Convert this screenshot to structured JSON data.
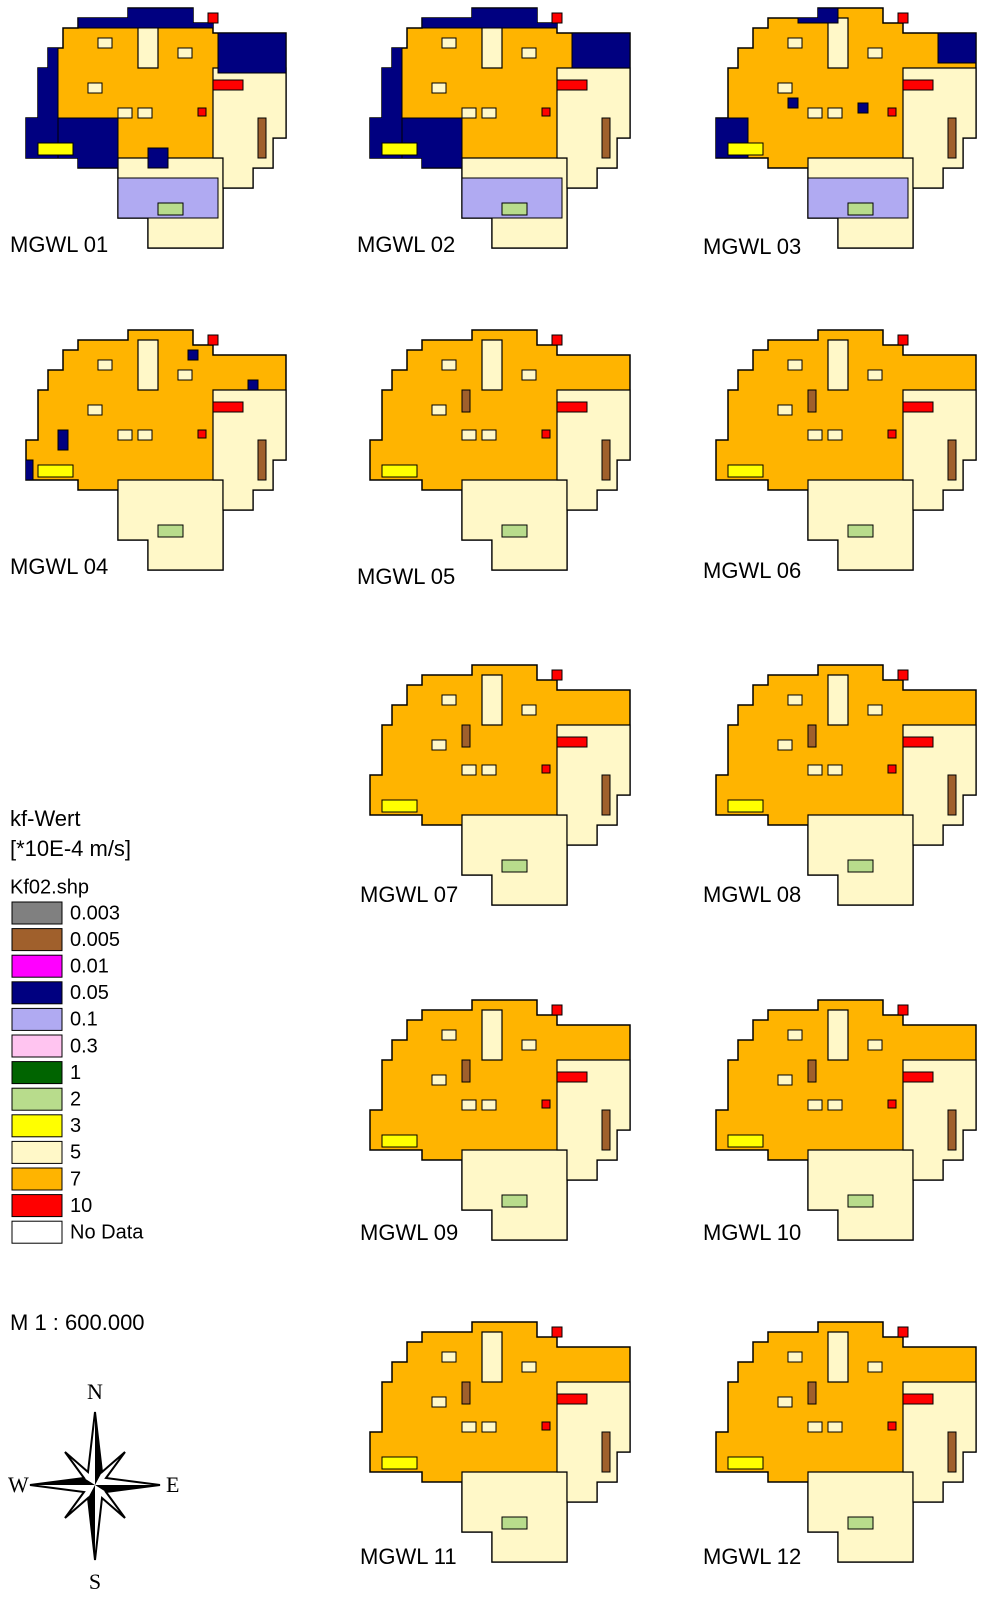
{
  "maps": [
    {
      "label": "MGWL 01"
    },
    {
      "label": "MGWL 02"
    },
    {
      "label": "MGWL 03"
    },
    {
      "label": "MGWL 04"
    },
    {
      "label": "MGWL 05"
    },
    {
      "label": "MGWL 06"
    },
    {
      "label": "MGWL 07"
    },
    {
      "label": "MGWL 08"
    },
    {
      "label": "MGWL 09"
    },
    {
      "label": "MGWL 10"
    },
    {
      "label": "MGWL 11"
    },
    {
      "label": "MGWL 12"
    }
  ],
  "legend": {
    "title": "kf-Wert",
    "unit": "[*10E-4 m/s]",
    "layer": "Kf02.shp",
    "items": [
      {
        "label": "0.003",
        "color": "#808080"
      },
      {
        "label": "0.005",
        "color": "#a0602c"
      },
      {
        "label": "0.01",
        "color": "#ff00ff"
      },
      {
        "label": "0.05",
        "color": "#000080"
      },
      {
        "label": "0.1",
        "color": "#b0aaf2"
      },
      {
        "label": "0.3",
        "color": "#ffc4f0"
      },
      {
        "label": "1",
        "color": "#006400"
      },
      {
        "label": "2",
        "color": "#b8dc8c"
      },
      {
        "label": "3",
        "color": "#ffff00"
      },
      {
        "label": "5",
        "color": "#fff8c8"
      },
      {
        "label": "7",
        "color": "#ffb400"
      },
      {
        "label": "10",
        "color": "#ff0000"
      },
      {
        "label": "No Data",
        "color": "#ffffff"
      }
    ]
  },
  "scale": "M 1 : 600.000",
  "compass": {
    "n": "N",
    "e": "E",
    "s": "S",
    "w": "W"
  }
}
